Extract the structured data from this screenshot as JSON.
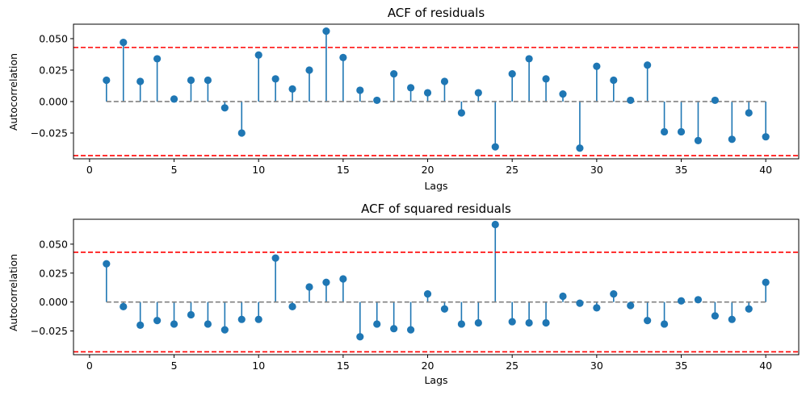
{
  "colors": {
    "stem": "#1f77b4",
    "marker": "#1f77b4",
    "baseline": "#808080",
    "confidence": "#ff0000",
    "background": "#ffffff"
  },
  "chart_data": [
    {
      "type": "stem",
      "title": "ACF of residuals",
      "xlabel": "Lags",
      "ylabel": "Autocorrelation",
      "xlim": [
        -0.95,
        41.95
      ],
      "ylim": [
        -0.0455,
        0.0615
      ],
      "xticks": [
        0,
        5,
        10,
        15,
        20,
        25,
        30,
        35,
        40
      ],
      "yticks": [
        -0.025,
        0.0,
        0.025,
        0.05
      ],
      "ytick_labels": [
        "−0.025",
        "0.000",
        "0.025",
        "0.050"
      ],
      "baseline": 0.0,
      "confidence_band": [
        -0.043,
        0.043
      ],
      "grid": false,
      "x": [
        1,
        2,
        3,
        4,
        5,
        6,
        7,
        8,
        9,
        10,
        11,
        12,
        13,
        14,
        15,
        16,
        17,
        18,
        19,
        20,
        21,
        22,
        23,
        24,
        25,
        26,
        27,
        28,
        29,
        30,
        31,
        32,
        33,
        34,
        35,
        36,
        37,
        38,
        39,
        40
      ],
      "values": [
        0.017,
        0.047,
        0.016,
        0.034,
        0.002,
        0.017,
        0.017,
        -0.005,
        -0.025,
        0.037,
        0.018,
        0.01,
        0.025,
        0.056,
        0.035,
        0.009,
        0.001,
        0.022,
        0.011,
        0.007,
        0.016,
        -0.009,
        0.007,
        -0.036,
        0.022,
        0.034,
        0.018,
        0.006,
        -0.037,
        0.028,
        0.017,
        0.001,
        0.029,
        -0.024,
        -0.024,
        -0.031,
        0.001,
        -0.03,
        -0.009,
        -0.028
      ]
    },
    {
      "type": "stem",
      "title": "ACF of squared residuals",
      "xlabel": "Lags",
      "ylabel": "Autocorrelation",
      "xlim": [
        -0.95,
        41.95
      ],
      "ylim": [
        -0.0455,
        0.0715
      ],
      "xticks": [
        0,
        5,
        10,
        15,
        20,
        25,
        30,
        35,
        40
      ],
      "yticks": [
        -0.025,
        0.0,
        0.025,
        0.05
      ],
      "ytick_labels": [
        "−0.025",
        "0.000",
        "0.025",
        "0.050"
      ],
      "baseline": 0.0,
      "confidence_band": [
        -0.043,
        0.043
      ],
      "grid": false,
      "x": [
        1,
        2,
        3,
        4,
        5,
        6,
        7,
        8,
        9,
        10,
        11,
        12,
        13,
        14,
        15,
        16,
        17,
        18,
        19,
        20,
        21,
        22,
        23,
        24,
        25,
        26,
        27,
        28,
        29,
        30,
        31,
        32,
        33,
        34,
        35,
        36,
        37,
        38,
        39,
        40
      ],
      "values": [
        0.033,
        -0.004,
        -0.02,
        -0.016,
        -0.019,
        -0.011,
        -0.019,
        -0.024,
        -0.015,
        -0.015,
        0.038,
        -0.004,
        0.013,
        0.017,
        0.02,
        -0.03,
        -0.019,
        -0.023,
        -0.024,
        0.007,
        -0.006,
        -0.019,
        -0.018,
        0.067,
        -0.017,
        -0.018,
        -0.018,
        0.005,
        -0.001,
        -0.005,
        0.007,
        -0.003,
        -0.016,
        -0.019,
        0.001,
        0.002,
        -0.012,
        -0.015,
        -0.006,
        0.017
      ]
    }
  ]
}
